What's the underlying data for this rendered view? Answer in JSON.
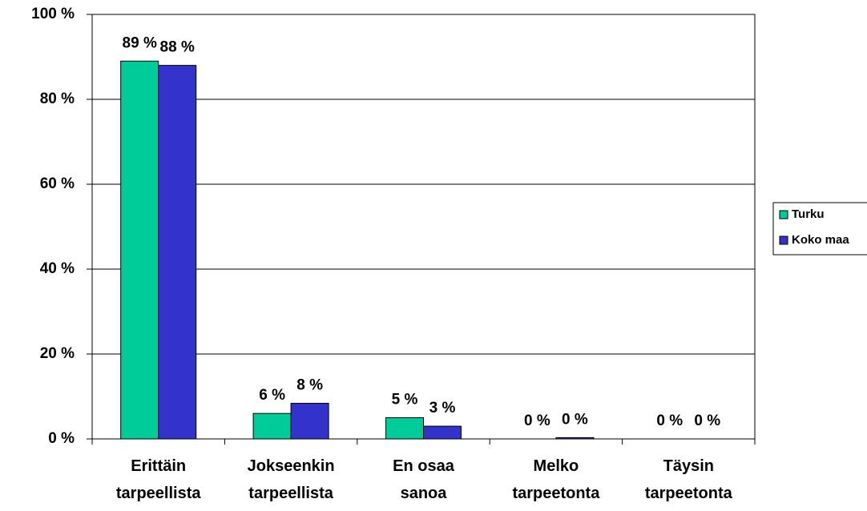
{
  "chart_data": {
    "type": "bar",
    "categories": [
      "Erittäin\ntarpeellista",
      "Jokseenkin\ntarpeellista",
      "En osaa\nsanoa",
      "Melko\ntarpeetonta",
      "Täysin\ntarpeetonta"
    ],
    "series": [
      {
        "name": "Turku",
        "color": "#00cc99",
        "values": [
          89,
          6,
          5,
          0,
          0
        ],
        "value_labels": [
          "89 %",
          "6 %",
          "5 %",
          "0 %",
          "0 %"
        ]
      },
      {
        "name": "Koko maa",
        "color": "#3333cc",
        "values": [
          88,
          8.4,
          3,
          0.3,
          0
        ],
        "value_labels": [
          "88 %",
          "8 %",
          "3 %",
          "0 %",
          "0 %"
        ]
      }
    ],
    "ylim": [
      0,
      100
    ],
    "yticks": [
      {
        "value": 0,
        "label": "0 %"
      },
      {
        "value": 20,
        "label": "20 %"
      },
      {
        "value": 40,
        "label": "40 %"
      },
      {
        "value": 60,
        "label": "60 %"
      },
      {
        "value": 80,
        "label": "80 %"
      },
      {
        "value": 100,
        "label": "100 %"
      }
    ],
    "grid": true,
    "legend": "right"
  }
}
